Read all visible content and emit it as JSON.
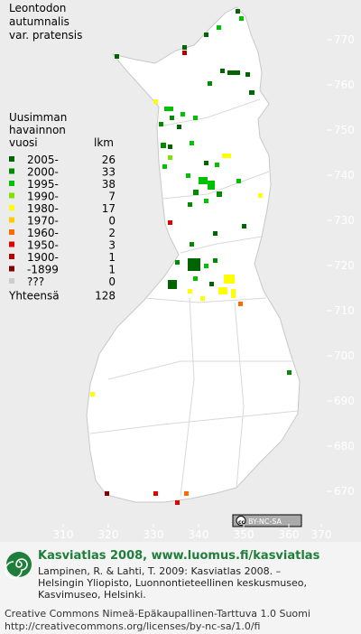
{
  "title": [
    "Leontodon",
    "autumnalis",
    "var. pratensis"
  ],
  "legend": {
    "header": [
      "Uusimman",
      "havainnon",
      "vuosi"
    ],
    "count_header": "lkm",
    "rows": [
      {
        "label": "2005-",
        "count": 26,
        "color": "#006400"
      },
      {
        "label": "2000-",
        "count": 33,
        "color": "#008a00"
      },
      {
        "label": "1995-",
        "count": 38,
        "color": "#00c000"
      },
      {
        "label": "1990-",
        "count": 7,
        "color": "#80e000"
      },
      {
        "label": "1980-",
        "count": 17,
        "color": "#ffff00"
      },
      {
        "label": "1970-",
        "count": 0,
        "color": "#ffcc00"
      },
      {
        "label": "1960-",
        "count": 2,
        "color": "#ff6a00"
      },
      {
        "label": "1950-",
        "count": 3,
        "color": "#e00000"
      },
      {
        "label": "1900-",
        "count": 1,
        "color": "#b40000"
      },
      {
        "label": "-1899",
        "count": 1,
        "color": "#800000"
      },
      {
        "label": "???",
        "count": 0,
        "color": "#cccccc"
      }
    ],
    "total": {
      "label": "Yhteensä",
      "value": 128
    }
  },
  "y_ticks": [
    770,
    760,
    750,
    740,
    730,
    720,
    710,
    700,
    690,
    680,
    670
  ],
  "x_ticks": [
    310,
    320,
    330,
    340,
    350,
    360,
    370
  ],
  "license_badge": "BY-NC-SA",
  "footer": {
    "heading": "Kasviatlas 2008, www.luomus.fi/kasviatlas",
    "citation": [
      "Lampinen, R. & Lahti, T. 2009: Kasviatlas 2008. –",
      "Helsingin Yliopisto, Luonnontieteellinen keskusmuseo,",
      "Kasvimuseo, Helsinki."
    ],
    "license": [
      "Creative Commons Nimeä-Epäkaupallinen-Tarttuva 1.0 Suomi",
      "http://creativecommons.org/licenses/by-nc-sa/1.0/fi"
    ]
  }
}
